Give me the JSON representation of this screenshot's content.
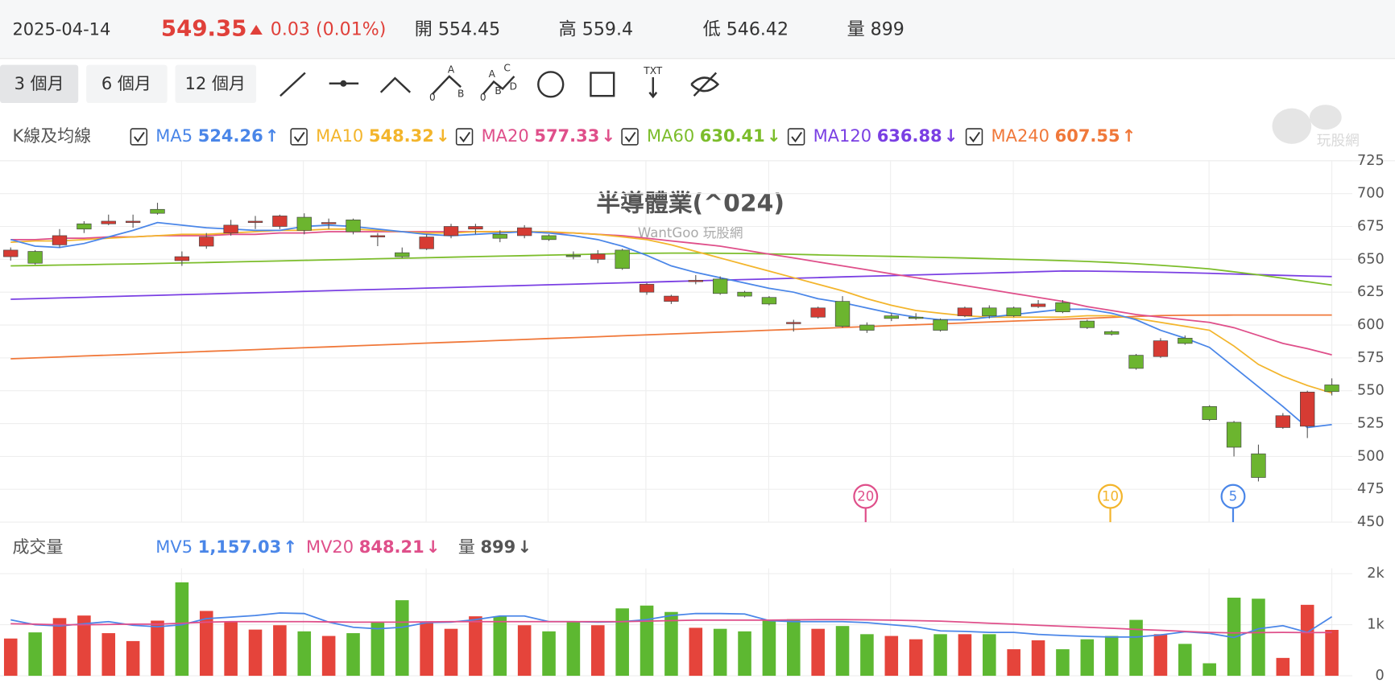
{
  "header": {
    "date": "2025-04-14",
    "price": "549.35",
    "change": "0.03 (0.01%)",
    "open_label": "開",
    "open": 554.45,
    "high_label": "高",
    "high": 559.4,
    "low_label": "低",
    "low": 546.42,
    "volume_label": "量",
    "volume": 899
  },
  "toolbar": {
    "ranges": [
      "3 個月",
      "6 個月",
      "12 個月"
    ],
    "icon_ab": [
      "A",
      "0",
      "B"
    ],
    "icon_abcd": [
      "A",
      "C",
      "0",
      "B",
      "D"
    ],
    "icon_txt": "TXT"
  },
  "watermark": {
    "logo": "玩股網"
  },
  "chart_data": [
    {
      "type": "candlestick",
      "title": "半導體業(^024)",
      "subtitle": "WantGoo 玩股網",
      "legend_title": "K線及均線",
      "up_color": "#d63b33",
      "down_color": "#6cb52f",
      "ylim": [
        450,
        725
      ],
      "yticks": [
        450,
        475,
        500,
        525,
        550,
        575,
        600,
        625,
        650,
        675,
        700,
        725
      ],
      "open": [
        652,
        656,
        661,
        677,
        677,
        678,
        688,
        649,
        660,
        670,
        678,
        675,
        682,
        677,
        680,
        667,
        655,
        658,
        668,
        673,
        669,
        668,
        668,
        653,
        650,
        657,
        625,
        618,
        633,
        635,
        625,
        621,
        601,
        606,
        618,
        600,
        607,
        606,
        604,
        607,
        613,
        613,
        614,
        617,
        603,
        595,
        577,
        576,
        590,
        538,
        526,
        502,
        522,
        523,
        554.45
      ],
      "close": [
        657,
        647,
        668,
        673,
        679,
        679,
        685,
        652,
        667,
        676,
        679,
        683,
        672,
        678,
        671,
        668,
        652,
        667,
        675,
        675,
        666,
        674,
        665,
        652,
        654,
        643,
        631,
        622,
        634,
        624,
        622,
        616,
        602,
        613,
        599,
        596,
        605,
        605,
        596,
        613,
        607,
        607,
        616,
        610,
        598,
        593,
        567,
        588,
        586,
        528,
        507,
        484,
        531,
        549,
        549.35
      ],
      "high": [
        659,
        657,
        673,
        679,
        684,
        684,
        693,
        656,
        670,
        680,
        683,
        684,
        685,
        681,
        681,
        670,
        659,
        669,
        677,
        677,
        672,
        676,
        669,
        656,
        657,
        658,
        632,
        623,
        638,
        637,
        626,
        622,
        604,
        614,
        622,
        602,
        609,
        609,
        605,
        614,
        615,
        614,
        619,
        619,
        604,
        596,
        578,
        590,
        592,
        539,
        527,
        509,
        533,
        550,
        559.4
      ],
      "low": [
        649,
        646,
        659,
        670,
        676,
        674,
        684,
        645,
        658,
        668,
        673,
        673,
        669,
        673,
        669,
        660,
        651,
        657,
        666,
        669,
        663,
        666,
        664,
        650,
        647,
        642,
        623,
        616,
        631,
        623,
        621,
        615,
        595,
        605,
        598,
        594,
        603,
        604,
        595,
        606,
        605,
        606,
        613,
        609,
        597,
        592,
        566,
        575,
        585,
        527,
        500,
        481,
        521,
        514,
        546.42
      ],
      "series": [
        {
          "name": "MA5",
          "color": "#4a86e8",
          "legend_value": 524.26,
          "trend": "↑",
          "values": [
            665,
            660,
            659,
            662,
            667,
            672,
            678,
            676,
            674,
            673,
            672,
            672,
            675,
            676,
            675,
            673,
            671,
            669,
            668,
            669,
            670,
            671,
            670,
            668,
            665,
            660,
            653,
            645,
            640,
            636,
            632,
            628,
            625,
            620,
            617,
            613,
            609,
            606,
            604,
            604,
            606,
            608,
            610,
            612,
            612,
            609,
            604,
            596,
            590,
            583,
            568,
            553,
            538,
            522,
            524.26
          ]
        },
        {
          "name": "MA10",
          "color": "#f3b52c",
          "legend_value": 548.32,
          "trend": "↓",
          "values": [
            663,
            664,
            664,
            665,
            666,
            667,
            668,
            669,
            669,
            670,
            671,
            672,
            672,
            673,
            673,
            672,
            671,
            670,
            670,
            671,
            671,
            671,
            671,
            670,
            669,
            667,
            665,
            661,
            656,
            651,
            646,
            641,
            636,
            631,
            626,
            620,
            615,
            611,
            609,
            607,
            606,
            606,
            606,
            606,
            607,
            607,
            605,
            602,
            599,
            596,
            584,
            570,
            561,
            554,
            548.32
          ]
        },
        {
          "name": "MA20",
          "color": "#df4f8a",
          "legend_value": 577.33,
          "trend": "↓",
          "values": [
            665,
            665,
            666,
            666,
            667,
            667,
            668,
            668,
            668,
            669,
            669,
            670,
            670,
            671,
            671,
            671,
            671,
            671,
            671,
            671,
            671,
            671,
            670,
            670,
            669,
            668,
            666,
            664,
            662,
            660,
            657,
            654,
            651,
            648,
            645,
            642,
            639,
            636,
            633,
            630,
            627,
            624,
            621,
            618,
            614,
            611,
            608,
            606,
            604,
            602,
            598,
            592,
            586,
            582,
            577.33
          ]
        },
        {
          "name": "MA60",
          "color": "#7cbd2b",
          "legend_value": 630.41,
          "trend": "↓",
          "values": [
            645,
            645.3,
            645.6,
            645.9,
            646.2,
            646.5,
            646.8,
            647.2,
            647.6,
            648,
            648.4,
            648.8,
            649.2,
            649.6,
            650,
            650.4,
            650.8,
            651.2,
            651.6,
            652,
            652.4,
            652.8,
            653.2,
            653.6,
            654,
            654.4,
            654.6,
            654.7,
            654.7,
            654.6,
            654.4,
            654.1,
            653.8,
            653.4,
            653,
            652.6,
            652.2,
            651.8,
            651.4,
            651,
            650.5,
            650,
            649.5,
            649,
            648.4,
            647.6,
            646.6,
            645.5,
            644.2,
            642.7,
            640.5,
            638.2,
            635.6,
            633,
            630.41
          ]
        },
        {
          "name": "MA120",
          "color": "#7a3fe3",
          "legend_value": 636.88,
          "trend": "↓",
          "values": [
            619.6,
            620.1,
            620.6,
            621.1,
            621.6,
            622.1,
            622.6,
            623.1,
            623.6,
            624.1,
            624.6,
            625.1,
            625.6,
            626.1,
            626.6,
            627.1,
            627.6,
            628.1,
            628.6,
            629.1,
            629.6,
            630.1,
            630.6,
            631.1,
            631.6,
            632.1,
            632.6,
            633.1,
            633.6,
            634.1,
            634.6,
            635.1,
            635.6,
            636.1,
            636.6,
            637.1,
            637.6,
            638.1,
            638.6,
            639.1,
            639.6,
            640.1,
            640.6,
            641.1,
            641,
            640.8,
            640.5,
            640.2,
            639.8,
            639.3,
            638.8,
            638.3,
            637.8,
            637.3,
            636.88
          ]
        },
        {
          "name": "MA240",
          "color": "#f0783a",
          "legend_value": 607.55,
          "trend": "↑",
          "values": [
            574.3,
            575,
            575.7,
            576.4,
            577.1,
            577.8,
            578.5,
            579.2,
            579.9,
            580.6,
            581.3,
            582,
            582.7,
            583.4,
            584.1,
            584.8,
            585.5,
            586.2,
            586.9,
            587.6,
            588.3,
            589,
            589.7,
            590.4,
            591.1,
            591.8,
            592.5,
            593.2,
            593.9,
            594.6,
            595.3,
            596,
            596.7,
            597.4,
            598.1,
            598.8,
            599.5,
            600.2,
            600.9,
            601.6,
            602.3,
            603,
            603.7,
            604.4,
            605.1,
            605.8,
            606.5,
            607.2,
            607.4,
            607.5,
            607.6,
            607.6,
            607.6,
            607.6,
            607.55
          ]
        }
      ],
      "annotations": [
        {
          "label": "20",
          "color": "#df4f8a"
        },
        {
          "label": "10",
          "color": "#f3b52c"
        },
        {
          "label": "5",
          "color": "#4a86e8"
        }
      ]
    },
    {
      "type": "bar",
      "legend_title": "成交量",
      "up_color": "#e5443b",
      "down_color": "#5db831",
      "ylim": [
        0,
        2000
      ],
      "yticks": [
        0,
        {
          "value": 1000,
          "label": "1k"
        },
        {
          "value": 2000,
          "label": "2k"
        }
      ],
      "values": [
        730,
        850,
        1130,
        1180,
        835,
        680,
        1080,
        1830,
        1270,
        1060,
        905,
        990,
        870,
        780,
        835,
        1040,
        1480,
        1060,
        920,
        1165,
        1165,
        990,
        870,
        1060,
        990,
        1320,
        1375,
        1250,
        940,
        920,
        870,
        1080,
        1110,
        920,
        975,
        815,
        780,
        715,
        815,
        815,
        815,
        520,
        695,
        520,
        715,
        780,
        1095,
        815,
        625,
        245,
        1530,
        1510,
        350,
        1390,
        899
      ],
      "series": [
        {
          "name": "MV5",
          "color": "#4a86e8",
          "legend_value": 1157.03,
          "legend_value_label": "1,157.03",
          "trend": "↑",
          "values": [
            1095,
            1000,
            975,
            1020,
            1060,
            990,
            960,
            1000,
            1120,
            1150,
            1180,
            1230,
            1220,
            1050,
            950,
            920,
            950,
            1040,
            1050,
            1100,
            1170,
            1170,
            1060,
            1060,
            1050,
            1060,
            1100,
            1180,
            1220,
            1220,
            1210,
            1080,
            1060,
            1060,
            1060,
            1040,
            1000,
            960,
            880,
            870,
            850,
            850,
            810,
            790,
            770,
            760,
            760,
            800,
            860,
            830,
            750,
            920,
            980,
            850,
            1157.03
          ]
        },
        {
          "name": "MV20",
          "color": "#df4f8a",
          "legend_value": 848.21,
          "trend": "↓",
          "values": [
            1020,
            1010,
            1000,
            1000,
            1005,
            1010,
            1010,
            1030,
            1050,
            1060,
            1060,
            1060,
            1060,
            1055,
            1050,
            1050,
            1050,
            1055,
            1060,
            1060,
            1060,
            1060,
            1060,
            1060,
            1060,
            1060,
            1070,
            1080,
            1090,
            1090,
            1090,
            1090,
            1095,
            1100,
            1100,
            1095,
            1090,
            1080,
            1070,
            1050,
            1030,
            1010,
            990,
            970,
            950,
            930,
            910,
            890,
            870,
            850,
            840,
            845,
            850,
            845,
            848.21
          ]
        }
      ],
      "extra_legend": {
        "name": "量",
        "legend_value": 899,
        "trend": "↓",
        "color": "#555555"
      }
    }
  ]
}
